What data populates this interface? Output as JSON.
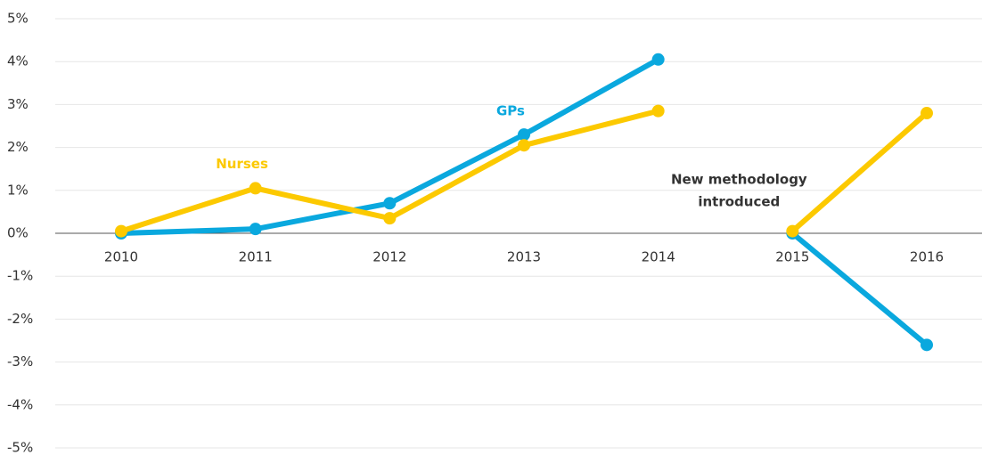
{
  "chart_data": {
    "type": "line",
    "categories": [
      "2010",
      "2011",
      "2012",
      "2013",
      "2014",
      "2015",
      "2016"
    ],
    "series": [
      {
        "name": "GPs",
        "color": "#0aa8de",
        "values": [
          0,
          0.1,
          0.7,
          2.3,
          4.05,
          0,
          -2.6
        ]
      },
      {
        "name": "Nurses",
        "color": "#fcc900",
        "values": [
          0.05,
          1.05,
          0.35,
          2.05,
          2.85,
          0.05,
          2.8
        ]
      }
    ],
    "ylim": [
      -5,
      5
    ],
    "yticks": [
      {
        "value": -5,
        "label": "-5%"
      },
      {
        "value": -4,
        "label": "-4%"
      },
      {
        "value": -3,
        "label": "-3%"
      },
      {
        "value": -2,
        "label": "-2%"
      },
      {
        "value": -1,
        "label": "-1%"
      },
      {
        "value": 0,
        "label": "0%"
      },
      {
        "value": 1,
        "label": "1%"
      },
      {
        "value": 2,
        "label": "2%"
      },
      {
        "value": 3,
        "label": "3%"
      },
      {
        "value": 4,
        "label": "4%"
      },
      {
        "value": 5,
        "label": "5%"
      }
    ],
    "grid": true,
    "annotations": [
      {
        "lines": [
          "New methodology",
          "introduced"
        ],
        "category": "2015"
      }
    ]
  }
}
